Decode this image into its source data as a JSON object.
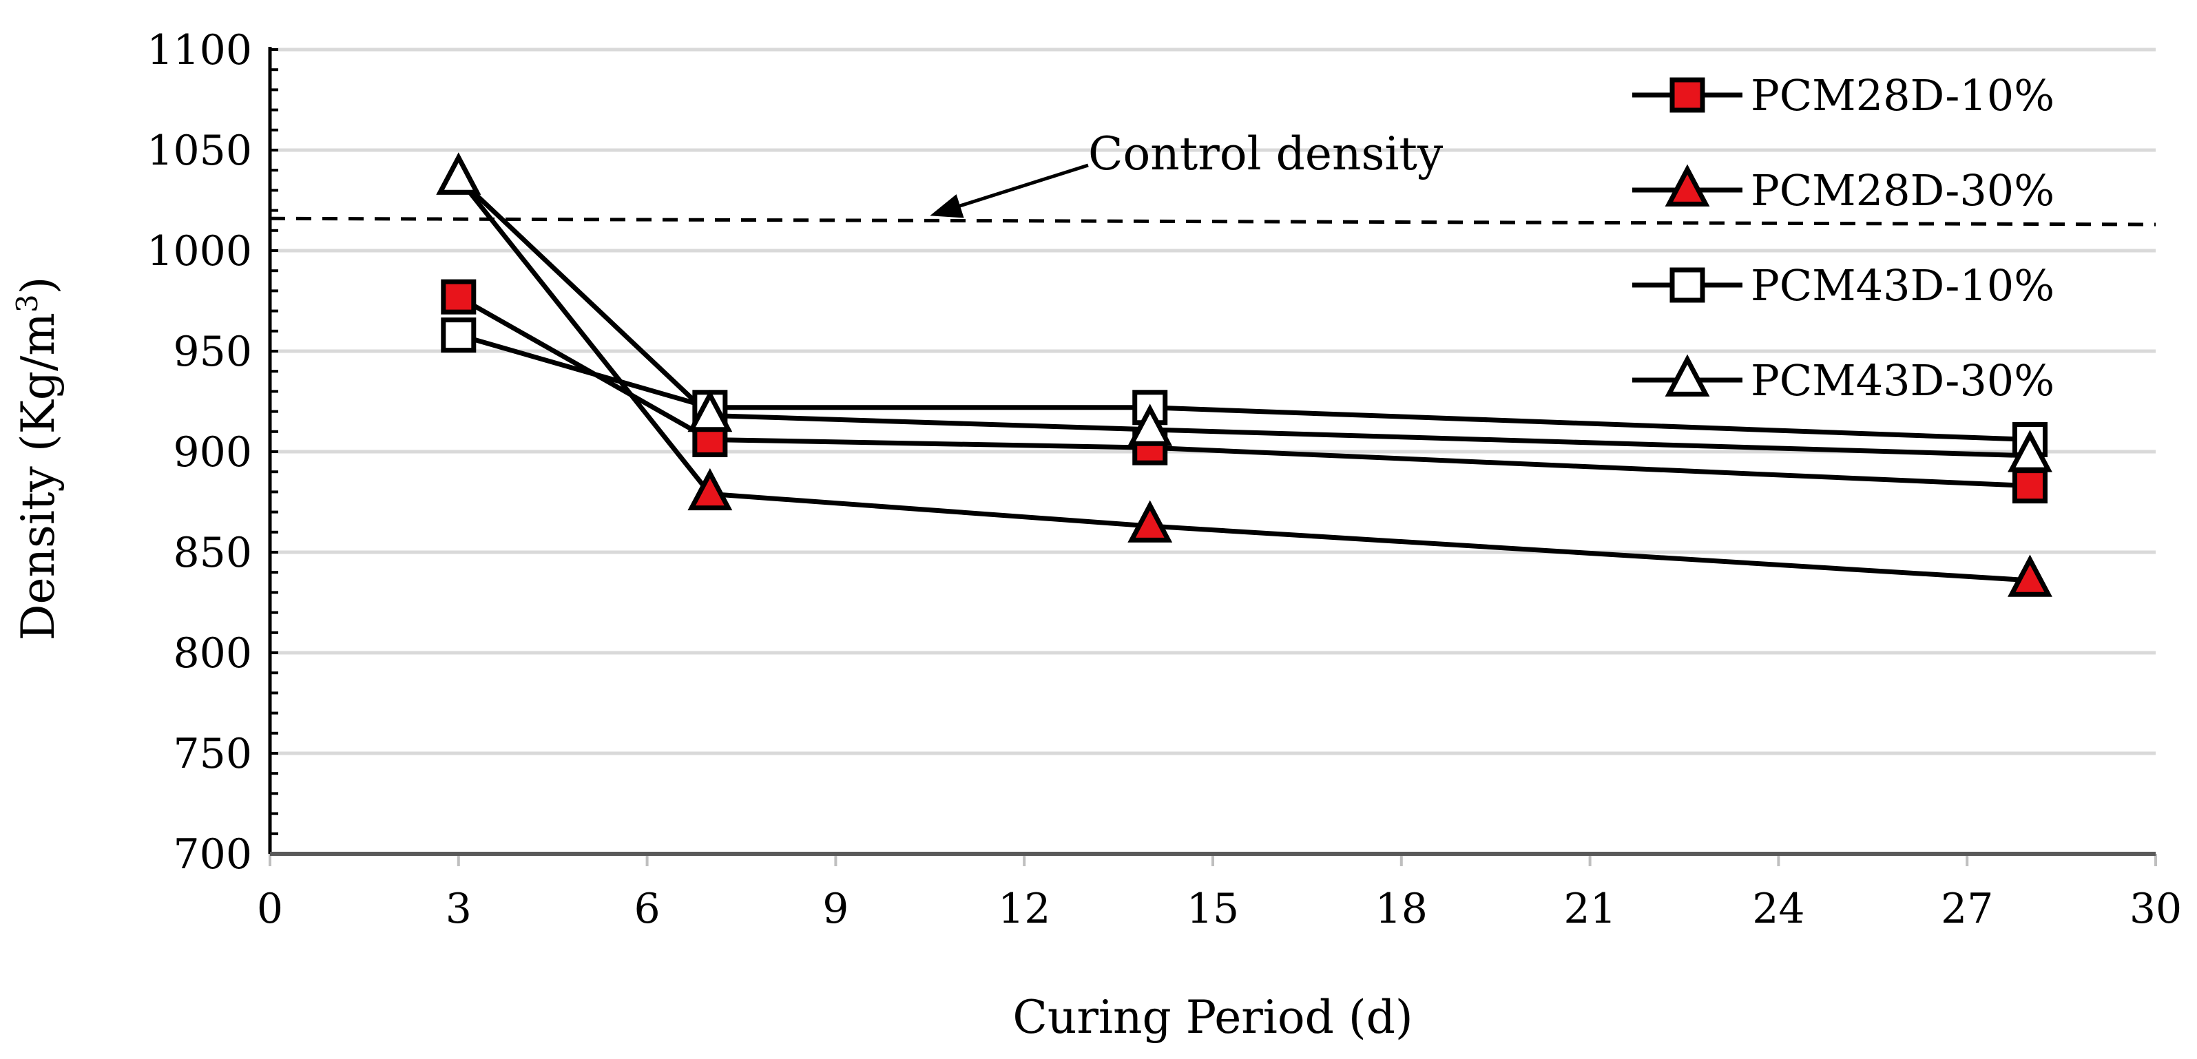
{
  "chart_data": {
    "type": "line",
    "title": "",
    "xlabel": "Curing Period (d)",
    "ylabel": {
      "main": "Density (Kg/m",
      "sup": "3",
      "close": ")"
    },
    "xlim": [
      0,
      30
    ],
    "ylim": [
      700,
      1100
    ],
    "xticks": [
      0,
      3,
      6,
      9,
      12,
      15,
      18,
      21,
      24,
      27,
      30
    ],
    "yticks": [
      700,
      750,
      800,
      850,
      900,
      950,
      1000,
      1050,
      1100
    ],
    "grid": "horizontal",
    "legend_position": "top-right",
    "series": [
      {
        "name": "PCM28D-10%",
        "marker": "square",
        "fill": "#e8141b",
        "x": [
          3,
          7,
          14,
          28
        ],
        "y": [
          977,
          906,
          902,
          883
        ]
      },
      {
        "name": "PCM28D-30%",
        "marker": "triangle",
        "fill": "#e8141b",
        "x": [
          3,
          7,
          14,
          28
        ],
        "y": [
          1036,
          879,
          863,
          836
        ]
      },
      {
        "name": "PCM43D-10%",
        "marker": "square",
        "fill": "#ffffff",
        "x": [
          3,
          7,
          14,
          28
        ],
        "y": [
          958,
          922,
          922,
          906
        ]
      },
      {
        "name": "PCM43D-30%",
        "marker": "triangle",
        "fill": "#ffffff",
        "x": [
          3,
          7,
          14,
          28
        ],
        "y": [
          1036,
          918,
          911,
          898
        ]
      }
    ],
    "reference_line": {
      "label": "Control density",
      "value": 1016,
      "style": "dashed"
    },
    "annotation": {
      "text": "Control density",
      "arrow_target": {
        "x": 10.5,
        "y": 1016
      }
    }
  }
}
